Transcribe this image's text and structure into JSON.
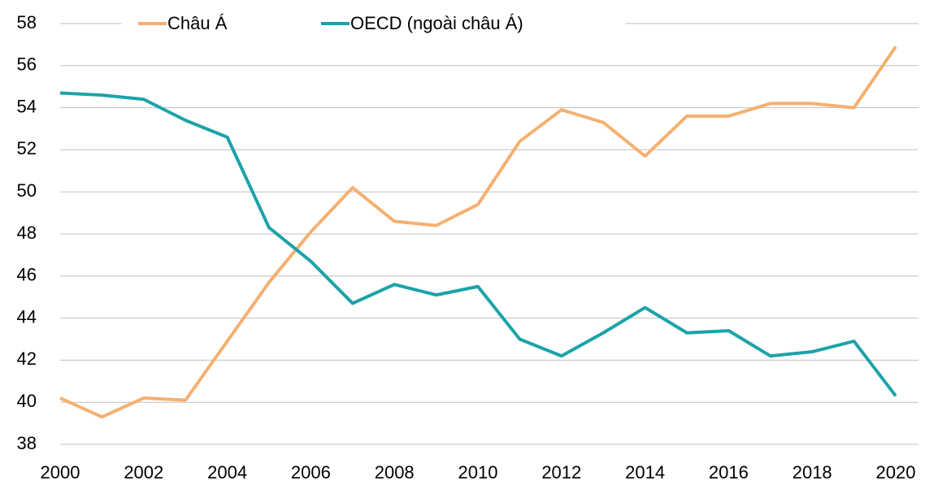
{
  "chart_data": {
    "type": "line",
    "x": [
      2000,
      2001,
      2002,
      2003,
      2004,
      2005,
      2006,
      2007,
      2008,
      2009,
      2010,
      2011,
      2012,
      2013,
      2014,
      2015,
      2016,
      2017,
      2018,
      2019,
      2020
    ],
    "series": [
      {
        "name": "Châu Á",
        "color": "#f5b070",
        "values": [
          40.2,
          39.3,
          40.2,
          40.1,
          42.9,
          45.7,
          48.1,
          50.2,
          48.6,
          48.4,
          49.4,
          52.4,
          53.9,
          53.3,
          51.7,
          53.6,
          53.6,
          54.2,
          54.2,
          54.0,
          56.9
        ]
      },
      {
        "name": "OECD (ngoài châu Á)",
        "color": "#1ba3a9",
        "values": [
          54.7,
          54.6,
          54.4,
          53.4,
          52.6,
          48.3,
          46.7,
          44.7,
          45.6,
          45.1,
          45.5,
          43.0,
          42.2,
          43.3,
          44.5,
          43.3,
          43.4,
          42.2,
          42.4,
          42.9,
          40.3
        ]
      }
    ],
    "xlim": [
      2000,
      2020
    ],
    "xticks": [
      2000,
      2002,
      2004,
      2006,
      2008,
      2010,
      2012,
      2014,
      2016,
      2018,
      2020
    ],
    "ylim": [
      38,
      58
    ],
    "yticks": [
      38,
      40,
      42,
      44,
      46,
      48,
      50,
      52,
      54,
      56,
      58
    ],
    "grid": true,
    "legend": "top"
  }
}
